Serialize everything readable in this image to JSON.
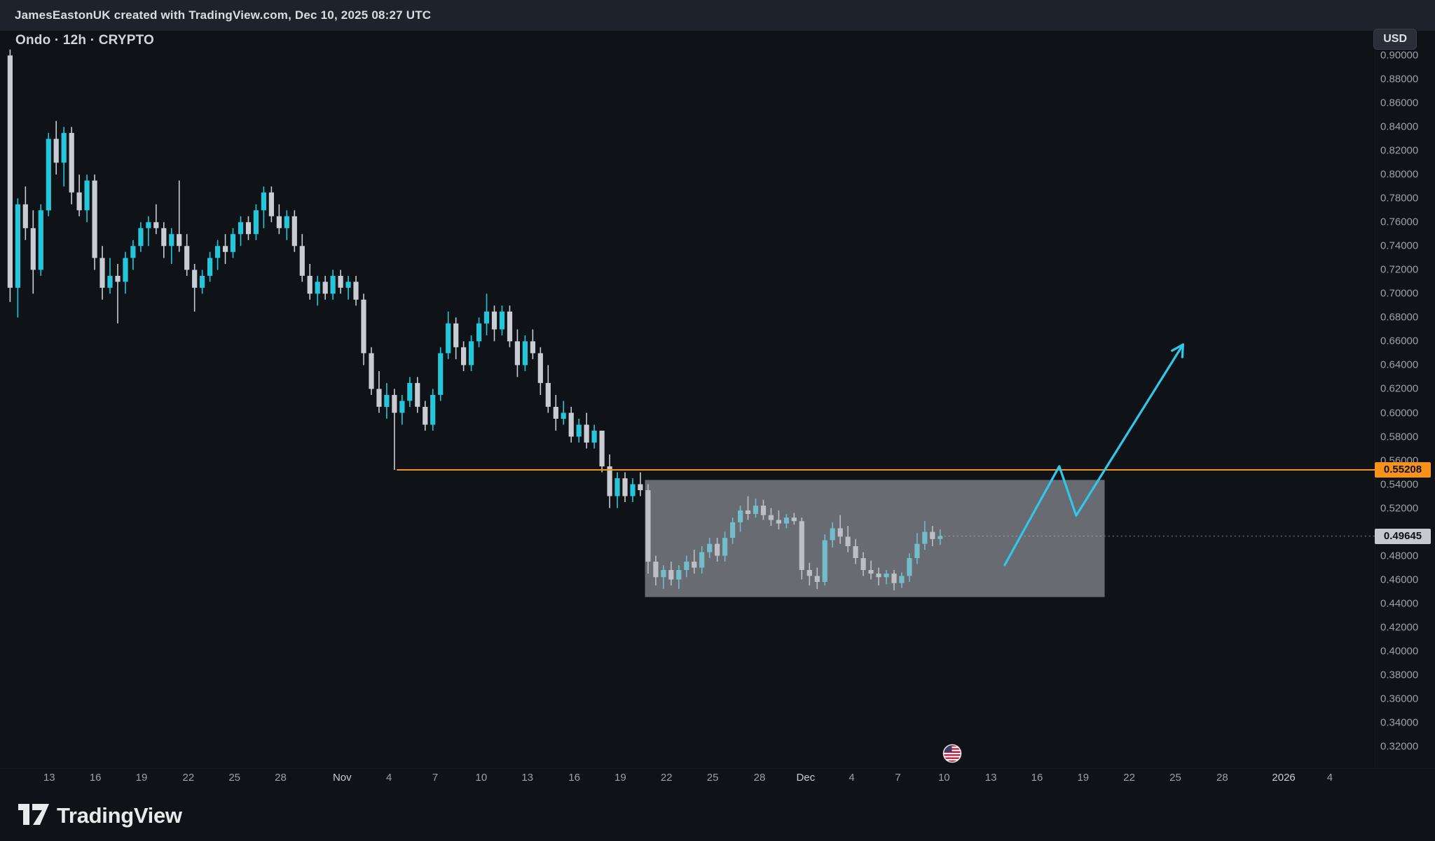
{
  "attribution": {
    "text": "JamesEastonUK created with TradingView.com, Dec 10, 2025 08:27 UTC"
  },
  "header": {
    "symbol_title": "Ondo · 12h · CRYPTO",
    "currency_badge": "USD"
  },
  "footer": {
    "brand": "TradingView"
  },
  "price_axis": {
    "ticks": [
      "0.90000",
      "0.88000",
      "0.86000",
      "0.84000",
      "0.82000",
      "0.80000",
      "0.78000",
      "0.76000",
      "0.74000",
      "0.72000",
      "0.70000",
      "0.68000",
      "0.66000",
      "0.64000",
      "0.62000",
      "0.60000",
      "0.58000",
      "0.56000",
      "0.54000",
      "0.52000",
      "0.48000",
      "0.46000",
      "0.44000",
      "0.42000",
      "0.40000",
      "0.38000",
      "0.36000",
      "0.34000",
      "0.32000"
    ],
    "level_label": "0.55208",
    "last_price_label": "0.49645"
  },
  "time_axis": {
    "ticks": [
      {
        "label": "13",
        "i": 5.1
      },
      {
        "label": "16",
        "i": 11.1
      },
      {
        "label": "19",
        "i": 17.1
      },
      {
        "label": "22",
        "i": 23.2
      },
      {
        "label": "25",
        "i": 29.2
      },
      {
        "label": "28",
        "i": 35.2
      },
      {
        "label": "Nov",
        "i": 43.2,
        "major": true
      },
      {
        "label": "4",
        "i": 49.3
      },
      {
        "label": "7",
        "i": 55.3
      },
      {
        "label": "10",
        "i": 61.3
      },
      {
        "label": "13",
        "i": 67.3
      },
      {
        "label": "16",
        "i": 73.4
      },
      {
        "label": "19",
        "i": 79.4
      },
      {
        "label": "22",
        "i": 85.4
      },
      {
        "label": "25",
        "i": 91.4
      },
      {
        "label": "28",
        "i": 97.5
      },
      {
        "label": "Dec",
        "i": 103.5,
        "major": true
      },
      {
        "label": "4",
        "i": 109.5
      },
      {
        "label": "7",
        "i": 115.5
      },
      {
        "label": "10",
        "i": 121.5
      },
      {
        "label": "13",
        "i": 127.6
      },
      {
        "label": "16",
        "i": 133.6
      },
      {
        "label": "19",
        "i": 139.6
      },
      {
        "label": "22",
        "i": 145.6
      },
      {
        "label": "25",
        "i": 151.6
      },
      {
        "label": "28",
        "i": 157.7
      },
      {
        "label": "2026",
        "i": 165.7,
        "major": true
      },
      {
        "label": "4",
        "i": 171.7
      }
    ]
  },
  "event_marker": {
    "i": 122.6,
    "icon": "us-flag-icon"
  },
  "colors": {
    "background": "#0F1217",
    "top_bar": "#1E222A",
    "up_candle": "#26C6DA",
    "down_candle": "#C9CCD3",
    "box_fill": "rgba(178,181,190,0.55)",
    "level_line": "#F7931A",
    "arrow": "#2FC8E8",
    "axis_text": "#9DA0A8",
    "axis_text_major": "#C9CCD3",
    "level_label_bg": "#F7931A",
    "last_label_bg": "#C6C9D0"
  },
  "chart_data": {
    "type": "candlestick",
    "title": "Ondo · 12h · CRYPTO",
    "timeframe_per_bar": "12h",
    "quote_currency": "USD",
    "y_domain": [
      0.3016,
      0.9207
    ],
    "last_price": 0.49645,
    "level_line": {
      "price": 0.55208,
      "start_i": 50.3
    },
    "consolidation_box": {
      "i_start": 82.6,
      "i_end": 142.4,
      "price_top": 0.5436,
      "price_bottom": 0.4453
    },
    "projection_arrow": {
      "points_i_price": [
        [
          129.4,
          0.4722
        ],
        [
          136.5,
          0.5551
        ],
        [
          138.7,
          0.5136
        ],
        [
          152.6,
          0.6573
        ]
      ]
    },
    "candles_ohlc": [
      [
        0.9,
        0.905,
        0.693,
        0.705
      ],
      [
        0.705,
        0.78,
        0.68,
        0.775
      ],
      [
        0.775,
        0.79,
        0.745,
        0.755
      ],
      [
        0.755,
        0.77,
        0.7,
        0.72
      ],
      [
        0.72,
        0.775,
        0.715,
        0.77
      ],
      [
        0.77,
        0.835,
        0.765,
        0.83
      ],
      [
        0.83,
        0.845,
        0.8,
        0.81
      ],
      [
        0.81,
        0.84,
        0.79,
        0.835
      ],
      [
        0.835,
        0.84,
        0.775,
        0.785
      ],
      [
        0.785,
        0.8,
        0.765,
        0.77
      ],
      [
        0.77,
        0.8,
        0.76,
        0.795
      ],
      [
        0.795,
        0.8,
        0.72,
        0.73
      ],
      [
        0.73,
        0.74,
        0.695,
        0.705
      ],
      [
        0.705,
        0.73,
        0.7,
        0.715
      ],
      [
        0.715,
        0.725,
        0.675,
        0.71
      ],
      [
        0.71,
        0.735,
        0.7,
        0.73
      ],
      [
        0.73,
        0.745,
        0.72,
        0.74
      ],
      [
        0.74,
        0.76,
        0.735,
        0.755
      ],
      [
        0.755,
        0.765,
        0.74,
        0.76
      ],
      [
        0.76,
        0.775,
        0.75,
        0.755
      ],
      [
        0.755,
        0.76,
        0.73,
        0.74
      ],
      [
        0.74,
        0.755,
        0.725,
        0.75
      ],
      [
        0.75,
        0.795,
        0.735,
        0.74
      ],
      [
        0.74,
        0.75,
        0.715,
        0.72
      ],
      [
        0.72,
        0.725,
        0.685,
        0.705
      ],
      [
        0.705,
        0.72,
        0.7,
        0.715
      ],
      [
        0.715,
        0.735,
        0.71,
        0.73
      ],
      [
        0.73,
        0.745,
        0.72,
        0.74
      ],
      [
        0.74,
        0.75,
        0.725,
        0.735
      ],
      [
        0.735,
        0.755,
        0.73,
        0.75
      ],
      [
        0.75,
        0.765,
        0.74,
        0.76
      ],
      [
        0.76,
        0.765,
        0.745,
        0.75
      ],
      [
        0.75,
        0.775,
        0.745,
        0.77
      ],
      [
        0.77,
        0.79,
        0.755,
        0.785
      ],
      [
        0.785,
        0.79,
        0.76,
        0.765
      ],
      [
        0.765,
        0.775,
        0.75,
        0.755
      ],
      [
        0.755,
        0.77,
        0.745,
        0.765
      ],
      [
        0.765,
        0.77,
        0.735,
        0.74
      ],
      [
        0.74,
        0.75,
        0.71,
        0.715
      ],
      [
        0.715,
        0.725,
        0.695,
        0.7
      ],
      [
        0.7,
        0.715,
        0.69,
        0.71
      ],
      [
        0.71,
        0.715,
        0.695,
        0.7
      ],
      [
        0.7,
        0.72,
        0.695,
        0.715
      ],
      [
        0.715,
        0.72,
        0.7,
        0.705
      ],
      [
        0.705,
        0.715,
        0.695,
        0.71
      ],
      [
        0.71,
        0.715,
        0.69,
        0.695
      ],
      [
        0.695,
        0.7,
        0.64,
        0.65
      ],
      [
        0.65,
        0.655,
        0.615,
        0.62
      ],
      [
        0.62,
        0.635,
        0.6,
        0.605
      ],
      [
        0.605,
        0.625,
        0.595,
        0.615
      ],
      [
        0.615,
        0.62,
        0.552,
        0.6
      ],
      [
        0.6,
        0.615,
        0.59,
        0.61
      ],
      [
        0.61,
        0.63,
        0.605,
        0.625
      ],
      [
        0.625,
        0.63,
        0.6,
        0.605
      ],
      [
        0.605,
        0.61,
        0.585,
        0.59
      ],
      [
        0.59,
        0.62,
        0.585,
        0.615
      ],
      [
        0.615,
        0.655,
        0.61,
        0.65
      ],
      [
        0.65,
        0.685,
        0.645,
        0.675
      ],
      [
        0.675,
        0.68,
        0.645,
        0.655
      ],
      [
        0.655,
        0.66,
        0.635,
        0.64
      ],
      [
        0.64,
        0.665,
        0.635,
        0.66
      ],
      [
        0.66,
        0.68,
        0.655,
        0.675
      ],
      [
        0.675,
        0.7,
        0.665,
        0.685
      ],
      [
        0.685,
        0.69,
        0.66,
        0.67
      ],
      [
        0.67,
        0.69,
        0.665,
        0.685
      ],
      [
        0.685,
        0.69,
        0.655,
        0.66
      ],
      [
        0.66,
        0.67,
        0.63,
        0.64
      ],
      [
        0.64,
        0.665,
        0.635,
        0.66
      ],
      [
        0.66,
        0.67,
        0.645,
        0.65
      ],
      [
        0.65,
        0.655,
        0.615,
        0.625
      ],
      [
        0.625,
        0.64,
        0.6,
        0.605
      ],
      [
        0.605,
        0.615,
        0.585,
        0.595
      ],
      [
        0.595,
        0.61,
        0.59,
        0.6
      ],
      [
        0.6,
        0.605,
        0.575,
        0.58
      ],
      [
        0.58,
        0.595,
        0.575,
        0.59
      ],
      [
        0.59,
        0.6,
        0.57,
        0.575
      ],
      [
        0.575,
        0.59,
        0.57,
        0.585
      ],
      [
        0.585,
        0.585,
        0.55,
        0.555
      ],
      [
        0.555,
        0.565,
        0.52,
        0.53
      ],
      [
        0.53,
        0.55,
        0.52,
        0.545
      ],
      [
        0.545,
        0.55,
        0.525,
        0.53
      ],
      [
        0.53,
        0.545,
        0.525,
        0.54
      ],
      [
        0.54,
        0.55,
        0.53,
        0.535
      ],
      [
        0.535,
        0.54,
        0.465,
        0.475
      ],
      [
        0.475,
        0.48,
        0.455,
        0.462
      ],
      [
        0.462,
        0.472,
        0.452,
        0.468
      ],
      [
        0.468,
        0.475,
        0.455,
        0.46
      ],
      [
        0.46,
        0.472,
        0.452,
        0.468
      ],
      [
        0.468,
        0.48,
        0.462,
        0.475
      ],
      [
        0.475,
        0.485,
        0.465,
        0.47
      ],
      [
        0.47,
        0.488,
        0.465,
        0.483
      ],
      [
        0.483,
        0.495,
        0.478,
        0.49
      ],
      [
        0.49,
        0.495,
        0.475,
        0.48
      ],
      [
        0.48,
        0.5,
        0.475,
        0.495
      ],
      [
        0.495,
        0.512,
        0.49,
        0.508
      ],
      [
        0.508,
        0.522,
        0.5,
        0.518
      ],
      [
        0.518,
        0.53,
        0.51,
        0.515
      ],
      [
        0.515,
        0.528,
        0.512,
        0.522
      ],
      [
        0.522,
        0.527,
        0.51,
        0.514
      ],
      [
        0.514,
        0.52,
        0.505,
        0.51
      ],
      [
        0.51,
        0.518,
        0.502,
        0.507
      ],
      [
        0.507,
        0.515,
        0.503,
        0.512
      ],
      [
        0.512,
        0.516,
        0.506,
        0.509
      ],
      [
        0.509,
        0.512,
        0.46,
        0.468
      ],
      [
        0.468,
        0.474,
        0.455,
        0.463
      ],
      [
        0.463,
        0.47,
        0.452,
        0.458
      ],
      [
        0.458,
        0.498,
        0.455,
        0.493
      ],
      [
        0.493,
        0.508,
        0.487,
        0.503
      ],
      [
        0.503,
        0.514,
        0.49,
        0.496
      ],
      [
        0.496,
        0.505,
        0.483,
        0.488
      ],
      [
        0.488,
        0.494,
        0.473,
        0.478
      ],
      [
        0.478,
        0.483,
        0.463,
        0.468
      ],
      [
        0.468,
        0.476,
        0.46,
        0.465
      ],
      [
        0.465,
        0.47,
        0.455,
        0.462
      ],
      [
        0.462,
        0.468,
        0.456,
        0.465
      ],
      [
        0.465,
        0.468,
        0.451,
        0.457
      ],
      [
        0.457,
        0.466,
        0.453,
        0.463
      ],
      [
        0.463,
        0.482,
        0.458,
        0.478
      ],
      [
        0.478,
        0.499,
        0.473,
        0.49
      ],
      [
        0.49,
        0.509,
        0.485,
        0.5
      ],
      [
        0.5,
        0.505,
        0.488,
        0.494
      ],
      [
        0.494,
        0.502,
        0.489,
        0.49645
      ]
    ]
  }
}
